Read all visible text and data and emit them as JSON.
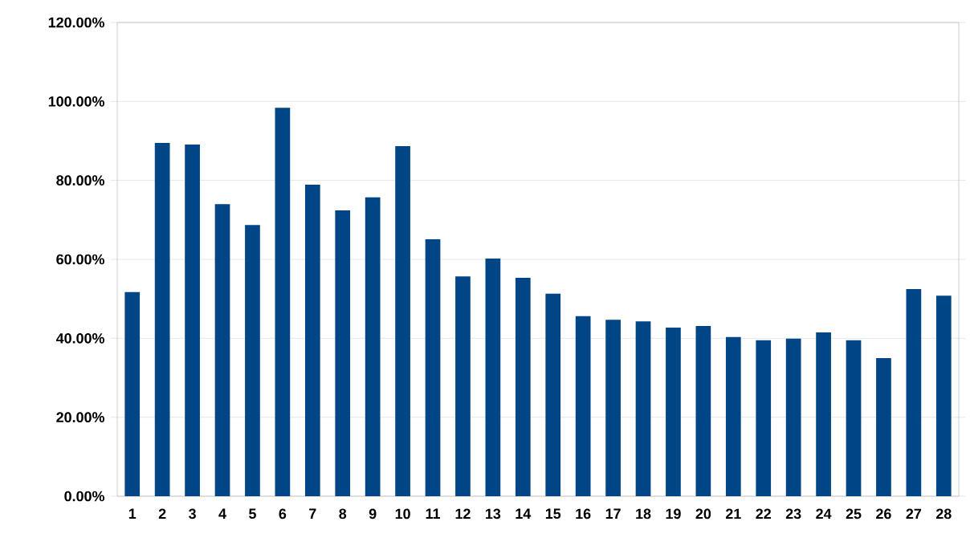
{
  "chart_data": {
    "type": "bar",
    "categories": [
      "1",
      "2",
      "3",
      "4",
      "5",
      "6",
      "7",
      "8",
      "9",
      "10",
      "11",
      "12",
      "13",
      "14",
      "15",
      "16",
      "17",
      "18",
      "19",
      "20",
      "21",
      "22",
      "23",
      "24",
      "25",
      "26",
      "27",
      "28"
    ],
    "values": [
      51.7,
      89.5,
      89.1,
      74.0,
      68.7,
      98.4,
      78.9,
      72.4,
      75.7,
      88.7,
      65.1,
      55.7,
      60.2,
      55.3,
      51.3,
      45.6,
      44.7,
      44.3,
      42.7,
      43.1,
      40.3,
      39.5,
      39.9,
      41.5,
      39.5,
      35.0,
      52.5,
      50.8
    ],
    "color": "#004586",
    "ylim": [
      0,
      120
    ],
    "yticks": [
      {
        "value": 0,
        "label": "0.00%"
      },
      {
        "value": 20,
        "label": "20.00%"
      },
      {
        "value": 40,
        "label": "40.00%"
      },
      {
        "value": 60,
        "label": "60.00%"
      },
      {
        "value": 80,
        "label": "80.00%"
      },
      {
        "value": 100,
        "label": "100.00%"
      },
      {
        "value": 120,
        "label": "120.00%"
      }
    ],
    "grid": "y"
  }
}
